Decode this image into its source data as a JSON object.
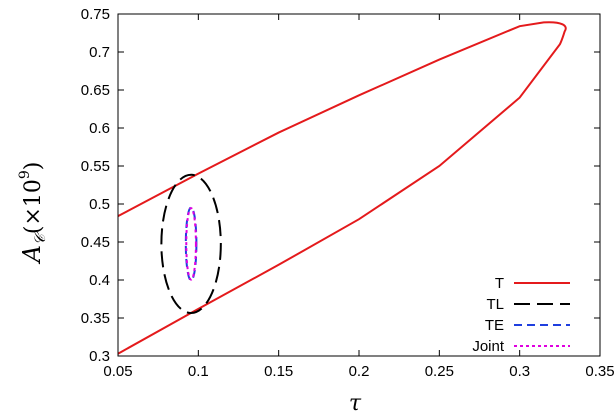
{
  "chart_data": {
    "type": "line",
    "xlabel": "τ",
    "ylabel": "A_𝒞(×10⁹)",
    "ylabel_parts": {
      "main": "A",
      "sub": "𝒞",
      "paren": "(×10",
      "exp": "9",
      "close": ")"
    },
    "xlim": [
      0.05,
      0.35
    ],
    "ylim": [
      0.3,
      0.75
    ],
    "xticks": [
      "0.05",
      "0.1",
      "0.15",
      "0.2",
      "0.25",
      "0.3",
      "0.35"
    ],
    "yticks": [
      "0.3",
      "0.35",
      "0.4",
      "0.45",
      "0.5",
      "0.55",
      "0.6",
      "0.65",
      "0.7",
      "0.75"
    ],
    "grid": false,
    "legend_position": "bottom-right",
    "series": [
      {
        "name": "T",
        "color": "#e41a1c",
        "dash": "solid",
        "shape": "ellipse",
        "upper": [
          [
            0.05,
            0.484
          ],
          [
            0.1,
            0.54
          ],
          [
            0.15,
            0.594
          ],
          [
            0.2,
            0.643
          ],
          [
            0.25,
            0.69
          ],
          [
            0.3,
            0.734
          ],
          [
            0.315,
            0.739
          ]
        ],
        "lower": [
          [
            0.05,
            0.303
          ],
          [
            0.1,
            0.362
          ],
          [
            0.15,
            0.42
          ],
          [
            0.2,
            0.48
          ],
          [
            0.25,
            0.55
          ],
          [
            0.3,
            0.64
          ],
          [
            0.325,
            0.71
          ]
        ],
        "tip": [
          0.328,
          0.727
        ]
      },
      {
        "name": "TL",
        "color": "#000000",
        "dash": "long-dash",
        "shape": "ellipse",
        "center": [
          0.0955,
          0.4475
        ],
        "rx": 0.0185,
        "ry": 0.091
      },
      {
        "name": "TE",
        "color": "#1f3fdf",
        "dash": "dash",
        "shape": "ellipse",
        "center": [
          0.0955,
          0.4475
        ],
        "rx": 0.0033,
        "ry": 0.048
      },
      {
        "name": "Joint",
        "color": "#e000e0",
        "dash": "dot",
        "shape": "ellipse",
        "center": [
          0.0955,
          0.4475
        ],
        "rx": 0.003,
        "ry": 0.047
      }
    ]
  }
}
